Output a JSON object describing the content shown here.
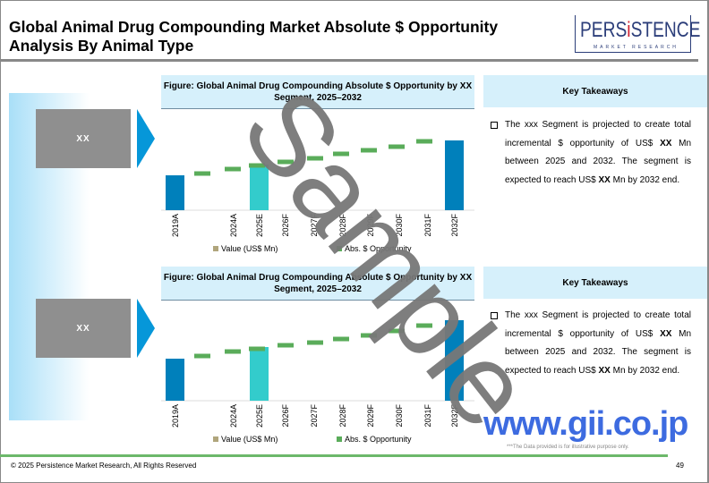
{
  "title": "Global Animal Drug Compounding Market Absolute $ Opportunity Analysis By Animal Type",
  "logo": {
    "main": "PERSISTENCE",
    "sub": "MARKET RESEARCH"
  },
  "colors": {
    "bar_actual": "#0080bb",
    "bar_estimate": "#33cccc",
    "opportunity": "#5aac5a",
    "arrow": "#0697d9",
    "watermark_gii": "#3d6be0"
  },
  "panels": [
    {
      "segment": "XX",
      "figure_title": "Figure: Global Animal Drug Compounding Absolute $ Opportunity by XX Segment, 2025–2032",
      "takeaways_title": "Key Takeaways",
      "takeaway_parts": [
        "The xxx Segment is projected to create total incremental $ opportunity of US$ ",
        "XX",
        " Mn between 2025 and 2032. The segment is expected to reach US$ ",
        "XX",
        " Mn by 2032 end."
      ]
    },
    {
      "segment": "XX",
      "figure_title": "Figure: Global Animal Drug Compounding Absolute $ Opportunity by XX Segment, 2025–2032",
      "takeaways_title": "Key Takeaways",
      "takeaway_parts": [
        "The xxx Segment is projected to create total incremental $ opportunity of US$ ",
        "XX",
        " Mn between 2025 and 2032. The segment is expected to reach US$ ",
        "XX",
        " Mn by 2032 end."
      ]
    }
  ],
  "chart_data": [
    {
      "type": "bar",
      "categories": [
        "2019A",
        "2024A",
        "2025E",
        "2026F",
        "2027F",
        "2028F",
        "2029F",
        "2030F",
        "2031F",
        "2032F"
      ],
      "legend": [
        "Value (US$ Mn)",
        "Abs. $ Opportunity"
      ],
      "bars": {
        "2019A": 39,
        "2025E": 51,
        "2032F": 78
      },
      "opportunity_levels": [
        41,
        46,
        50,
        54,
        58,
        63,
        67,
        71,
        77
      ]
    },
    {
      "type": "bar",
      "categories": [
        "2019A",
        "2024A",
        "2025E",
        "2026F",
        "2027F",
        "2028F",
        "2029F",
        "2030F",
        "2031F",
        "2032F"
      ],
      "legend": [
        "Value (US$ Mn)",
        "Abs. $ Opportunity"
      ],
      "bars": {
        "2019A": 47,
        "2025E": 60,
        "2032F": 90
      },
      "opportunity_levels": [
        50,
        55,
        58,
        62,
        65,
        69,
        73,
        78,
        84
      ]
    }
  ],
  "watermark": "Sample",
  "footer": {
    "copyright": "© 2025 Persistence Market Research, All Rights Reserved",
    "page": "49",
    "note": "***The Data provided is for illustrative purpose only.",
    "gii": "www.gii.co.jp"
  }
}
